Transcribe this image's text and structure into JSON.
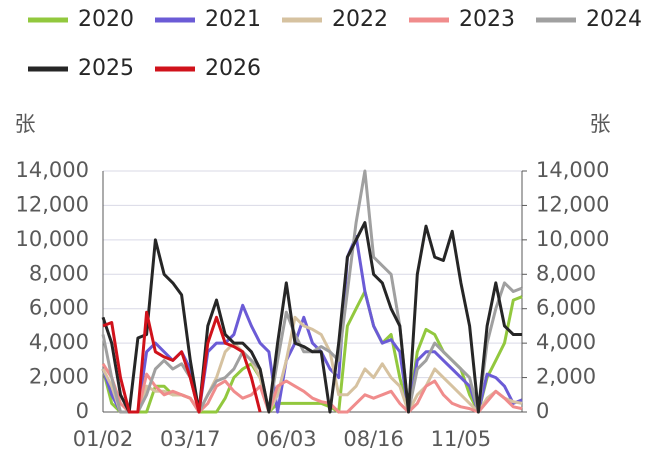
{
  "chart_data": {
    "type": "line",
    "y_label": "张",
    "y2_label": "张",
    "categories": [
      "01/02",
      null,
      null,
      null,
      null,
      null,
      null,
      null,
      null,
      null,
      "03/17",
      null,
      null,
      null,
      null,
      null,
      null,
      null,
      null,
      null,
      null,
      "06/03",
      null,
      null,
      null,
      null,
      null,
      null,
      null,
      null,
      null,
      "08/16",
      null,
      null,
      null,
      null,
      null,
      null,
      null,
      null,
      null,
      "11/05",
      null,
      null,
      null,
      null,
      null,
      null,
      null
    ],
    "ylim": [
      0,
      14000
    ],
    "yticks": [
      0,
      {
        "value": 2000,
        "label": "2,000"
      },
      {
        "value": 4000,
        "label": "4,000"
      },
      {
        "value": 6000,
        "label": "6,000"
      },
      {
        "value": 8000,
        "label": "8,000"
      },
      {
        "value": 10000,
        "label": "10,000"
      },
      {
        "value": 12000,
        "label": "12,000"
      },
      {
        "value": 14000,
        "label": "14,000"
      }
    ],
    "y2lim": [
      0,
      14000
    ],
    "y2ticks": [
      0,
      {
        "value": 2000,
        "label": "2,000"
      },
      {
        "value": 4000,
        "label": "4,000"
      },
      {
        "value": 6000,
        "label": "6,000"
      },
      {
        "value": 8000,
        "label": "8,000"
      },
      {
        "value": 10000,
        "label": "10,000"
      },
      {
        "value": 12000,
        "label": "12,000"
      },
      {
        "value": 14000,
        "label": "14,000"
      }
    ],
    "grid": true,
    "series": [
      {
        "name": "2020",
        "color": "#92c83e",
        "values": [
          2500,
          500,
          0,
          0,
          0,
          0,
          1500,
          1500,
          1000,
          1000,
          800,
          0,
          0,
          0,
          800,
          2000,
          2500,
          2800,
          2000,
          0,
          500,
          500,
          500,
          500,
          500,
          500,
          300,
          0,
          5000,
          6000,
          7000,
          5000,
          4000,
          4500,
          2000,
          0,
          3500,
          4800,
          4500,
          3500,
          3000,
          2500,
          1000,
          0,
          2000,
          3000,
          4000,
          6500,
          6700
        ]
      },
      {
        "name": "2021",
        "color": "#6b5bd6",
        "values": [
          2500,
          1000,
          0,
          0,
          0,
          3500,
          4000,
          3500,
          3000,
          3500,
          2500,
          0,
          3500,
          4000,
          4000,
          4500,
          6200,
          5000,
          4000,
          3500,
          0,
          3000,
          4000,
          5500,
          4000,
          3500,
          2500,
          2000,
          9000,
          10200,
          7000,
          5000,
          4000,
          4200,
          3500,
          0,
          3000,
          3500,
          3500,
          3000,
          2500,
          2000,
          1500,
          0,
          2200,
          2000,
          1500,
          500,
          700
        ]
      },
      {
        "name": "2022",
        "color": "#d6c2a0",
        "values": [
          2500,
          1500,
          0,
          0,
          0,
          1500,
          1200,
          1200,
          1000,
          1000,
          800,
          0,
          1000,
          2000,
          3500,
          4000,
          3500,
          3000,
          2000,
          0,
          1000,
          3000,
          5500,
          5000,
          4800,
          4500,
          3500,
          1000,
          1000,
          1500,
          2500,
          2000,
          2800,
          2000,
          1500,
          0,
          1000,
          1500,
          2500,
          2000,
          1500,
          1000,
          500,
          0,
          800,
          1200,
          800,
          600,
          500
        ]
      },
      {
        "name": "2023",
        "color": "#f08c8c",
        "values": [
          2800,
          2000,
          500,
          0,
          0,
          2200,
          1500,
          1000,
          1200,
          1000,
          800,
          0,
          500,
          1500,
          1800,
          1200,
          800,
          1000,
          1500,
          0,
          1500,
          1800,
          1500,
          1200,
          800,
          600,
          500,
          0,
          0,
          500,
          1000,
          800,
          1000,
          1200,
          500,
          0,
          500,
          1500,
          1800,
          1000,
          500,
          300,
          200,
          0,
          600,
          1200,
          800,
          300,
          200
        ]
      },
      {
        "name": "2024",
        "color": "#a0a0a0",
        "values": [
          4500,
          2000,
          0,
          0,
          0,
          1000,
          2500,
          3000,
          2500,
          2800,
          2000,
          0,
          1000,
          1800,
          2000,
          2500,
          3500,
          3000,
          2500,
          0,
          3000,
          5800,
          4500,
          3500,
          3500,
          3800,
          3500,
          3000,
          7000,
          11000,
          14000,
          9000,
          8500,
          8000,
          5000,
          0,
          2500,
          3000,
          4000,
          3500,
          3000,
          2500,
          2000,
          0,
          4000,
          6000,
          7500,
          7000,
          7200
        ]
      },
      {
        "name": "2025",
        "color": "#262626",
        "values": [
          5500,
          4000,
          1000,
          0,
          4300,
          4500,
          10000,
          8000,
          7500,
          6800,
          3000,
          0,
          5000,
          6500,
          4500,
          4000,
          4000,
          3500,
          2500,
          0,
          4000,
          7500,
          4000,
          3800,
          3500,
          3500,
          0,
          4000,
          9000,
          10000,
          11000,
          8000,
          7500,
          6000,
          5000,
          0,
          8000,
          10800,
          9000,
          8800,
          10500,
          7500,
          5000,
          0,
          5000,
          7500,
          5000,
          4500,
          4500
        ]
      },
      {
        "name": "2026",
        "color": "#d0121b",
        "values": [
          5000,
          5200,
          2000,
          0,
          0,
          5800,
          3500,
          3200,
          3000,
          3500,
          2000,
          0,
          4000,
          5500,
          4000,
          3800,
          3500,
          2000,
          0,
          null,
          null,
          null,
          null,
          null,
          null,
          null,
          null,
          null,
          null,
          null,
          null,
          null,
          null,
          null,
          null,
          null,
          null,
          null,
          null,
          null,
          null,
          null,
          null,
          null,
          null,
          null,
          null,
          null,
          null
        ]
      }
    ]
  }
}
